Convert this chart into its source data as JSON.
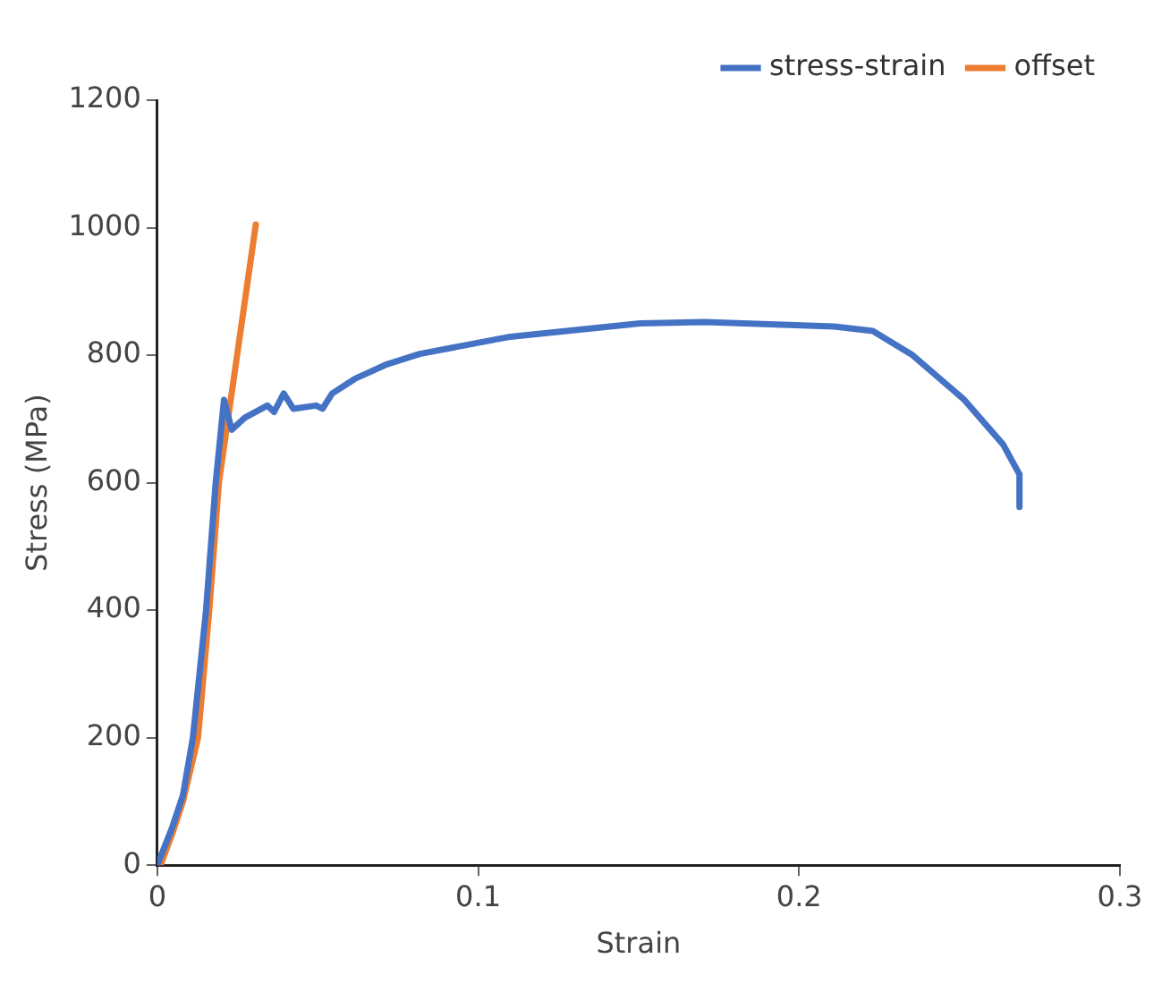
{
  "chart_data": {
    "type": "line",
    "xlabel": "Strain",
    "ylabel": "Stress (MPa)",
    "xlim": [
      0,
      0.3
    ],
    "xticks": [
      0,
      0.1,
      0.2,
      0.3
    ],
    "ylim": [
      0,
      1200
    ],
    "yticks": [
      0,
      200,
      400,
      600,
      800,
      1000,
      1200
    ],
    "grid": false,
    "legend": "top right",
    "marker": "none",
    "line_style": "solid",
    "series": [
      {
        "name": "stress-strain",
        "color": "#4472c4",
        "x": [
          0,
          0.0047,
          0.008,
          0.0111,
          0.0152,
          0.0182,
          0.0208,
          0.0232,
          0.0273,
          0.0343,
          0.0364,
          0.0394,
          0.0424,
          0.0495,
          0.0515,
          0.0545,
          0.0616,
          0.0717,
          0.0818,
          0.11,
          0.1505,
          0.1707,
          0.211,
          0.223,
          0.2354,
          0.2515,
          0.2636,
          0.2687,
          0.2687
        ],
        "values": [
          0,
          60,
          110,
          200,
          400,
          600,
          730,
          683,
          702,
          721,
          711,
          740,
          716,
          721,
          716,
          740,
          763,
          786,
          802,
          829,
          850,
          852,
          845,
          838,
          800,
          730,
          660,
          613,
          562
        ]
      },
      {
        "name": "offset",
        "color": "#ed7d31",
        "x": [
          0.001,
          0.0047,
          0.008,
          0.0127,
          0.0162,
          0.0192,
          0.0307
        ],
        "values": [
          0,
          50,
          100,
          200,
          400,
          600,
          1005
        ]
      }
    ]
  }
}
